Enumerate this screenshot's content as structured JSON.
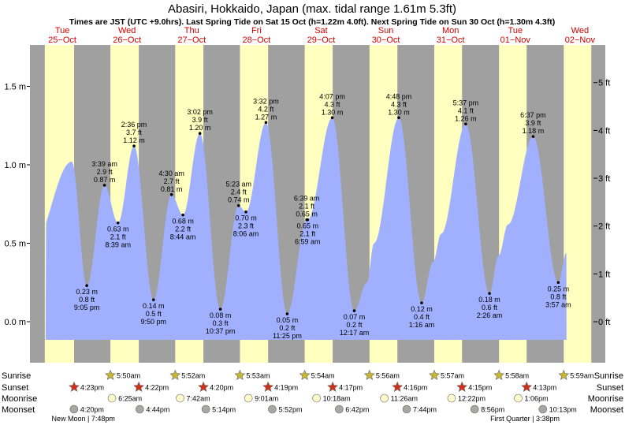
{
  "header": {
    "title": "Abasiri, Hokkaido, Japan (max. tidal range 1.61m 5.3ft)",
    "subtitle": "Times are JST (UTC +9.0hrs). Last Spring Tide on Sat 15 Oct (h=1.22m 4.0ft). Next Spring Tide on Sun 30 Oct (h=1.30m 4.3ft)"
  },
  "days": [
    {
      "dow": "Tue",
      "date": "25−Oct"
    },
    {
      "dow": "Wed",
      "date": "26−Oct"
    },
    {
      "dow": "Thu",
      "date": "27−Oct"
    },
    {
      "dow": "Fri",
      "date": "28−Oct"
    },
    {
      "dow": "Sat",
      "date": "29−Oct"
    },
    {
      "dow": "Sun",
      "date": "30−Oct"
    },
    {
      "dow": "Mon",
      "date": "31−Oct"
    },
    {
      "dow": "Tue",
      "date": "01−Nov"
    },
    {
      "dow": "Wed",
      "date": "02−Nov"
    }
  ],
  "chart_data": {
    "type": "area",
    "x_unit": "hours from 00:00 Tue 25-Oct (JST)",
    "ylim_m": [
      -0.33,
      1.65
    ],
    "y_ticks_m": [
      {
        "v": 1.5,
        "label": "1.5 m"
      },
      {
        "v": 1.0,
        "label": "1.0 m"
      },
      {
        "v": 0.5,
        "label": "0.5 m"
      },
      {
        "v": 0.0,
        "label": "0.0 m"
      }
    ],
    "y_ticks_ft": [
      {
        "v": 5,
        "label": "5 ft"
      },
      {
        "v": 4,
        "label": "4 ft"
      },
      {
        "v": 3,
        "label": "3 ft"
      },
      {
        "v": 2,
        "label": "2 ft"
      },
      {
        "v": 1,
        "label": "1 ft"
      },
      {
        "v": 0,
        "label": "0 ft"
      }
    ],
    "colors": {
      "day": "#ffffc0",
      "night": "#a0a0a0",
      "tide": "#a0b0ff",
      "day_label": "#d10000"
    },
    "extremes": [
      {
        "t": 15.5,
        "h": 1.02,
        "label": []
      },
      {
        "t": 21.08,
        "h": 0.23,
        "label": [
          "0.23 m",
          "0.8 ft",
          "9:05 pm"
        ],
        "pos": "below"
      },
      {
        "t": 27.65,
        "h": 0.87,
        "label": [
          "3:39 am",
          "2.9 ft",
          "0.87 m"
        ],
        "pos": "above"
      },
      {
        "t": 32.65,
        "h": 0.63,
        "label": [
          "0.63 m",
          "2.1 ft",
          "8:39 am"
        ],
        "pos": "below"
      },
      {
        "t": 38.6,
        "h": 1.12,
        "label": [
          "2:36 pm",
          "3.7 ft",
          "1.12 m"
        ],
        "pos": "above"
      },
      {
        "t": 45.83,
        "h": 0.14,
        "label": [
          "0.14 m",
          "0.5 ft",
          "9:50 pm"
        ],
        "pos": "below"
      },
      {
        "t": 52.5,
        "h": 0.81,
        "label": [
          "4:30 am",
          "2.7 ft",
          "0.81 m"
        ],
        "pos": "above"
      },
      {
        "t": 56.73,
        "h": 0.68,
        "label": [
          "0.68 m",
          "2.2 ft",
          "8:44 am"
        ],
        "pos": "below"
      },
      {
        "t": 63.03,
        "h": 1.2,
        "label": [
          "3:02 pm",
          "3.9 ft",
          "1.20 m"
        ],
        "pos": "above"
      },
      {
        "t": 70.62,
        "h": 0.08,
        "label": [
          "0.08 m",
          "0.3 ft",
          "10:37 pm"
        ],
        "pos": "below"
      },
      {
        "t": 77.38,
        "h": 0.74,
        "label": [
          "5:23 am",
          "2.4 ft",
          "0.74 m"
        ],
        "pos": "above"
      },
      {
        "t": 80.1,
        "h": 0.7,
        "label": [
          "0.70 m",
          "2.3 ft",
          "8:06 am"
        ],
        "pos": "below"
      },
      {
        "t": 87.53,
        "h": 1.27,
        "label": [
          "3:32 pm",
          "4.2 ft",
          "1.27 m"
        ],
        "pos": "above"
      },
      {
        "t": 95.42,
        "h": 0.05,
        "label": [
          "0.05 m",
          "0.2 ft",
          "11:25 pm"
        ],
        "pos": "below"
      },
      {
        "t": 102.65,
        "h": 0.65,
        "label": [
          "6:39 am",
          "2.1 ft",
          "0.65 m"
        ],
        "pos": "above"
      },
      {
        "t": 102.98,
        "h": 0.65,
        "label": [
          "0.65 m",
          "2.1 ft",
          "6:59 am"
        ],
        "pos": "below"
      },
      {
        "t": 112.12,
        "h": 1.3,
        "label": [
          "4:07 pm",
          "4.3 ft",
          "1.30 m"
        ],
        "pos": "above"
      },
      {
        "t": 120.28,
        "h": 0.07,
        "label": [
          "0.07 m",
          "0.2 ft",
          "12:17 am"
        ],
        "pos": "below"
      },
      {
        "t": 136.8,
        "h": 1.3,
        "label": [
          "4:48 pm",
          "4.3 ft",
          "1.30 m"
        ],
        "pos": "above"
      },
      {
        "t": 145.27,
        "h": 0.12,
        "label": [
          "0.12 m",
          "0.4 ft",
          "1:16 am"
        ],
        "pos": "below"
      },
      {
        "t": 161.62,
        "h": 1.26,
        "label": [
          "5:37 pm",
          "4.1 ft",
          "1.26 m"
        ],
        "pos": "above"
      },
      {
        "t": 170.43,
        "h": 0.18,
        "label": [
          "0.18 m",
          "0.6 ft",
          "2:26 am"
        ],
        "pos": "below"
      },
      {
        "t": 186.62,
        "h": 1.18,
        "label": [
          "6:37 pm",
          "3.9 ft",
          "1.18 m"
        ],
        "pos": "above"
      },
      {
        "t": 195.95,
        "h": 0.25,
        "label": [
          "0.25 m",
          "0.8 ft",
          "3:57 am"
        ],
        "pos": "below"
      },
      {
        "t": 199.0,
        "h": 0.44,
        "label": []
      }
    ],
    "curve_bumps": [
      {
        "t": 125.0,
        "h": 0.25
      },
      {
        "t": 127.6,
        "h": 0.5
      },
      {
        "t": 149.5,
        "h": 0.38
      },
      {
        "t": 152.5,
        "h": 0.56
      },
      {
        "t": 173.8,
        "h": 0.42
      },
      {
        "t": 177.3,
        "h": 0.62
      }
    ],
    "nights": [
      [
        0,
        5.5
      ],
      [
        16.38,
        29.83
      ],
      [
        40.37,
        53.87
      ],
      [
        64.33,
        77.88
      ],
      [
        88.32,
        101.9
      ],
      [
        112.28,
        125.93
      ],
      [
        136.27,
        149.95
      ],
      [
        160.25,
        173.97
      ],
      [
        184.22,
        197.98
      ],
      [
        208.2,
        209
      ]
    ],
    "rows": [
      {
        "name": "Sunrise",
        "color": "#c8b830",
        "kind": "star",
        "events": [
          {
            "t": 29.83,
            "label": "5:50am"
          },
          {
            "t": 53.87,
            "label": "5:52am"
          },
          {
            "t": 77.88,
            "label": "5:53am"
          },
          {
            "t": 101.9,
            "label": "5:54am"
          },
          {
            "t": 125.93,
            "label": "5:56am"
          },
          {
            "t": 149.95,
            "label": "5:57am"
          },
          {
            "t": 173.97,
            "label": "5:58am"
          },
          {
            "t": 197.98,
            "label": "5:59am"
          }
        ]
      },
      {
        "name": "Sunset",
        "color": "#d03018",
        "kind": "star",
        "events": [
          {
            "t": 16.38,
            "label": "4:23pm"
          },
          {
            "t": 40.37,
            "label": "4:22pm"
          },
          {
            "t": 64.33,
            "label": "4:20pm"
          },
          {
            "t": 88.32,
            "label": "4:19pm"
          },
          {
            "t": 112.28,
            "label": "4:17pm"
          },
          {
            "t": 136.27,
            "label": "4:16pm"
          },
          {
            "t": 160.25,
            "label": "4:15pm"
          },
          {
            "t": 184.22,
            "label": "4:13pm"
          }
        ]
      },
      {
        "name": "Moonrise",
        "color": "#fffacc",
        "kind": "circle",
        "events": [
          {
            "t": 30.42,
            "label": "6:25am"
          },
          {
            "t": 55.7,
            "label": "7:42am"
          },
          {
            "t": 81.02,
            "label": "9:01am"
          },
          {
            "t": 106.3,
            "label": "10:18am"
          },
          {
            "t": 131.43,
            "label": "11:26am"
          },
          {
            "t": 156.37,
            "label": "12:22pm"
          },
          {
            "t": 181.1,
            "label": "1:06pm"
          }
        ]
      },
      {
        "name": "Moonset",
        "color": "#a8a8a0",
        "kind": "circle",
        "events": [
          {
            "t": 16.33,
            "label": "4:20pm"
          },
          {
            "t": 40.73,
            "label": "4:44pm"
          },
          {
            "t": 65.23,
            "label": "5:14pm"
          },
          {
            "t": 89.87,
            "label": "5:52pm"
          },
          {
            "t": 114.7,
            "label": "6:42pm"
          },
          {
            "t": 139.73,
            "label": "7:44pm"
          },
          {
            "t": 164.93,
            "label": "8:56pm"
          },
          {
            "t": 190.22,
            "label": "10:13pm"
          }
        ]
      }
    ],
    "moon_phases": [
      {
        "label": "New Moon | 7:48pm",
        "t": 19.8
      },
      {
        "label": "First Quarter | 3:38pm",
        "t": 183.6
      }
    ]
  }
}
